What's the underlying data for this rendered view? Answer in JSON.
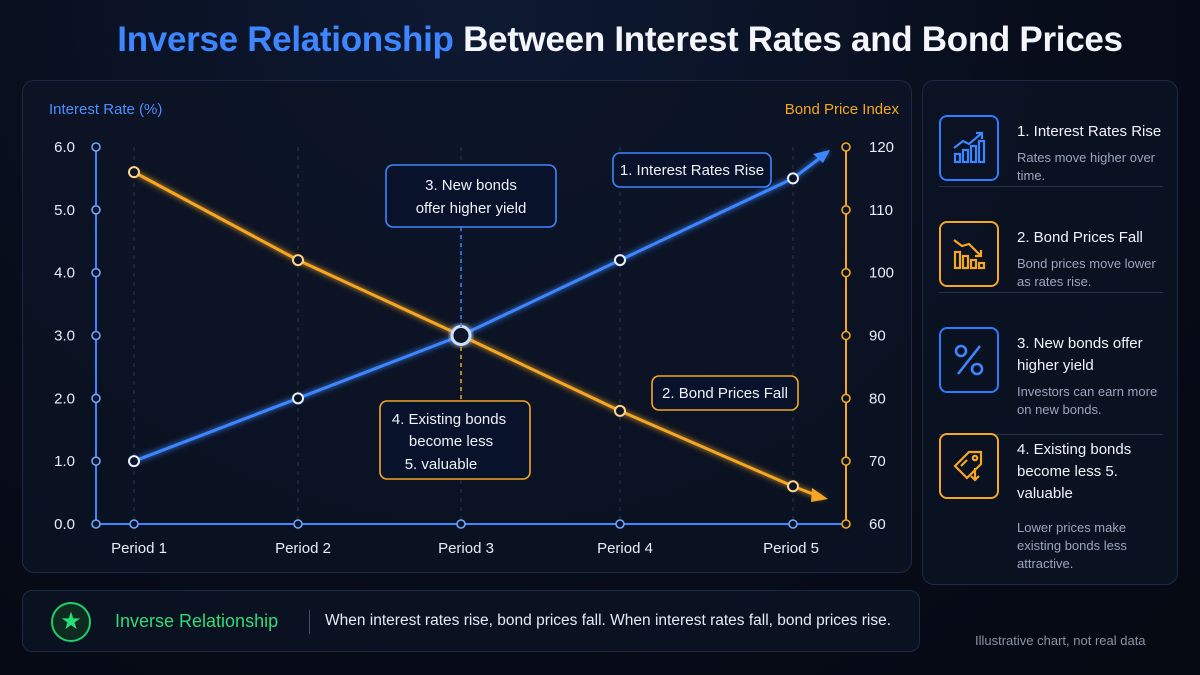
{
  "title": {
    "highlight": "Inverse Relationship",
    "rest": "Between Interest Rates and Bond Prices"
  },
  "chart_data": {
    "type": "line",
    "categories": [
      "Period 1",
      "Period 2",
      "Period 3",
      "Period 4",
      "Period 5"
    ],
    "series": [
      {
        "values": [
          1.0,
          2.0,
          3.0,
          4.2,
          5.5
        ],
        "axis": "left",
        "color": "#3d86ff"
      },
      {
        "values": [
          116,
          102,
          90,
          78,
          66
        ],
        "axis": "right",
        "color": "#f5a623"
      }
    ],
    "ylabel_left": "Interest Rate (%)",
    "ylabel_right": "Bond Price Index",
    "yticks_left": [
      "6.0",
      "5.0",
      "4.0",
      "3.0",
      "2.0",
      "1.0",
      "0.0"
    ],
    "yticks_right": [
      "120",
      "110",
      "100",
      "90",
      "80",
      "70",
      "60"
    ],
    "ylim_left": [
      0,
      6
    ],
    "ylim_right": [
      60,
      120
    ],
    "grid": "vertical dashed",
    "annotations": {
      "rates_rise": "1. Interest Rates Rise",
      "prices_fall": "2. Bond Prices Fall",
      "new_bonds_line1": "3. New bonds",
      "new_bonds_line2": "offer higher yield",
      "existing_line1": "4. Existing bonds",
      "existing_line2": "become less",
      "existing_line3": "5. valuable"
    }
  },
  "steps": [
    {
      "title": "1. Interest Rates Rise",
      "desc": "Rates move higher over time.",
      "color": "#2f7bff",
      "icon": "rising-bar-chart-icon"
    },
    {
      "title": "2. Bond Prices Fall",
      "desc": "Bond prices move lower as rates rise.",
      "color": "#f5a623",
      "icon": "falling-bar-chart-icon"
    },
    {
      "title": "3. New bonds offer higher yield",
      "desc": "Investors can earn more on new bonds.",
      "color": "#2f7bff",
      "icon": "percent-icon"
    },
    {
      "title": "4. Existing bonds become less 5. valuable",
      "desc": "Lower prices make existing bonds less attractive.",
      "color": "#f5a623",
      "icon": "price-tag-down-icon"
    }
  ],
  "bottom": {
    "label": "Inverse Relationship",
    "text": "When interest rates rise, bond prices fall. When interest rates fall, bond prices rise.",
    "icon": "star-icon"
  },
  "footnote": "Illustrative chart, not real data"
}
